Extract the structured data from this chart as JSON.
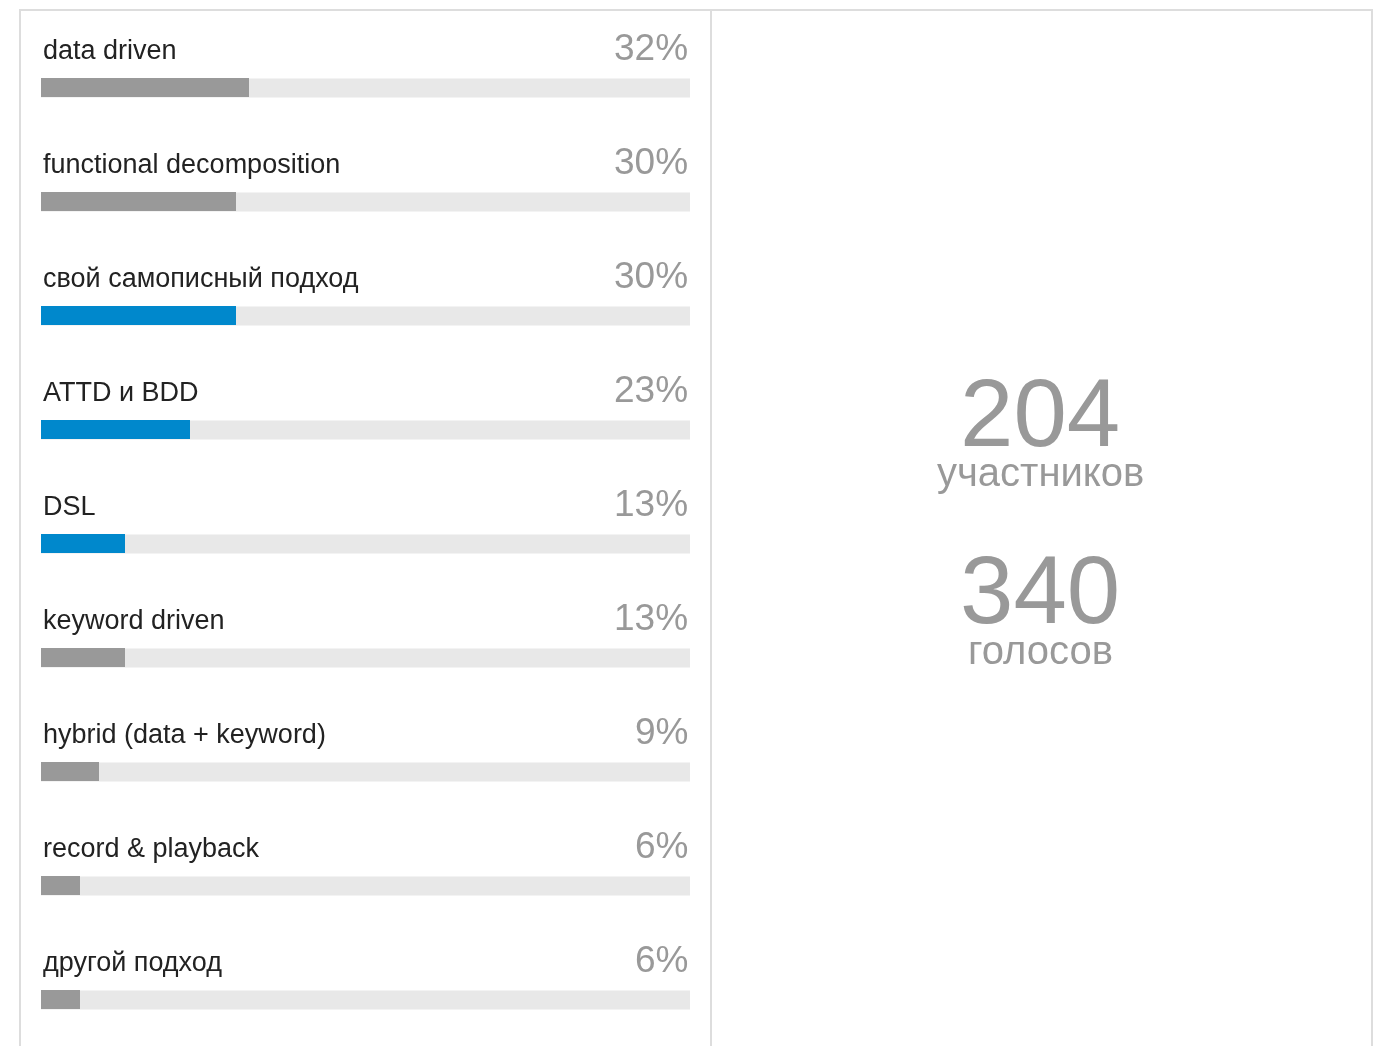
{
  "chart_data": [
    {
      "type": "bar",
      "orientation": "horizontal",
      "categories": [
        "data driven",
        "functional decomposition",
        "свой самописный подход",
        "ATTD и BDD",
        "DSL",
        "keyword driven",
        "hybrid (data + keyword)",
        "record & playback",
        "другой подход"
      ],
      "values": [
        32,
        30,
        30,
        23,
        13,
        13,
        9,
        6,
        6
      ],
      "value_labels": [
        "32%",
        "30%",
        "30%",
        "23%",
        "13%",
        "13%",
        "9%",
        "6%",
        "6%"
      ],
      "colors": [
        "#999999",
        "#999999",
        "#0088cc",
        "#0088cc",
        "#0088cc",
        "#999999",
        "#999999",
        "#999999",
        "#999999"
      ],
      "xlim": [
        0,
        100
      ],
      "grid": false,
      "legend": false
    },
    {
      "type": "other",
      "annotations": [
        "204",
        "участников",
        "340",
        "голосов"
      ]
    }
  ]
}
